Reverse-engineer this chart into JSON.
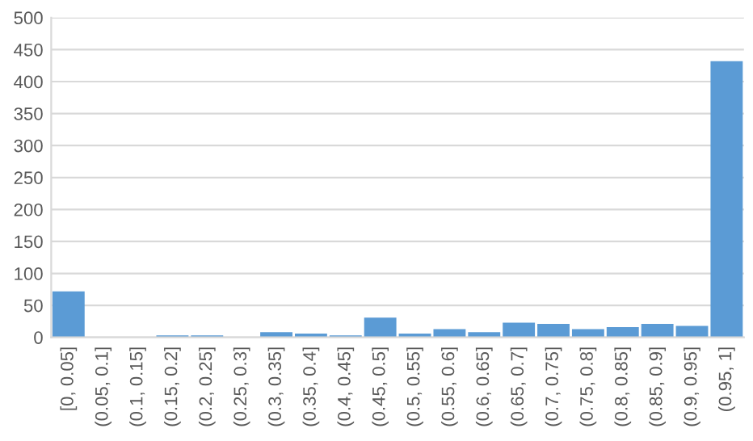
{
  "chart_data": {
    "type": "bar",
    "categories": [
      "[0, 0.05]",
      "(0.05, 0.1]",
      "(0.1, 0.15]",
      "(0.15, 0.2]",
      "(0.2, 0.25]",
      "(0.25, 0.3]",
      "(0.3, 0.35]",
      "(0.35, 0.4]",
      "(0.4, 0.45]",
      "(0.45, 0.5]",
      "(0.5, 0.55]",
      "(0.55, 0.6]",
      "(0.6, 0.65]",
      "(0.65, 0.7]",
      "(0.7, 0.75]",
      "(0.75, 0.8]",
      "(0.8, 0.85]",
      "(0.85, 0.9]",
      "(0.9, 0.95]",
      "(0.95, 1]"
    ],
    "values": [
      72,
      0,
      0,
      3,
      3,
      0,
      8,
      6,
      3,
      31,
      6,
      13,
      8,
      23,
      21,
      13,
      16,
      21,
      18,
      432
    ],
    "color": "#5b9bd5",
    "ylim": [
      0,
      500
    ],
    "yticks": [
      0,
      50,
      100,
      150,
      200,
      250,
      300,
      350,
      400,
      450,
      500
    ],
    "grid": "y"
  }
}
